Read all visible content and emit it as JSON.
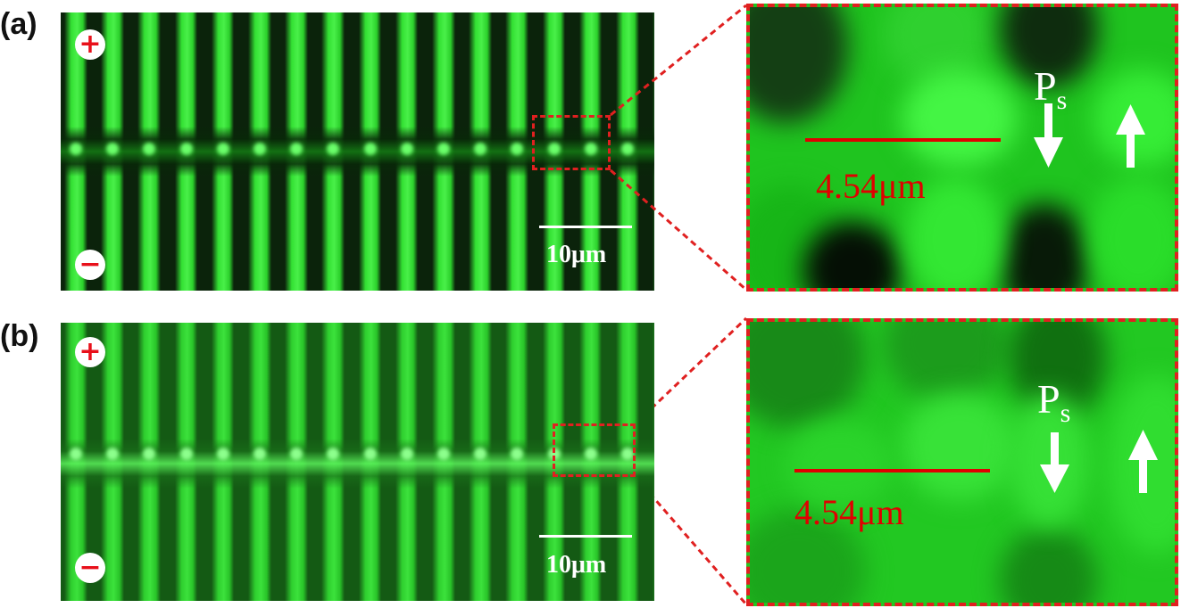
{
  "panels": [
    {
      "label": "(a)",
      "plus_symbol": "+",
      "minus_symbol": "−",
      "scale_text": "10μm",
      "zoom": {
        "polarization_label": "P",
        "polarization_subscript": "s",
        "measure_text": "4.54μm",
        "arrow_left": "down",
        "arrow_right": "up"
      }
    },
    {
      "label": "(b)",
      "plus_symbol": "+",
      "minus_symbol": "−",
      "scale_text": "10μm",
      "zoom": {
        "polarization_label": "P",
        "polarization_subscript": "s",
        "measure_text": "4.54μm",
        "arrow_left": "down",
        "arrow_right": "up"
      }
    }
  ],
  "colors": {
    "fluorescence": "#22e022",
    "dark": "#0a1a0a",
    "highlight": "#e02020",
    "sign": "#e8101a",
    "measure": "#e00000"
  }
}
